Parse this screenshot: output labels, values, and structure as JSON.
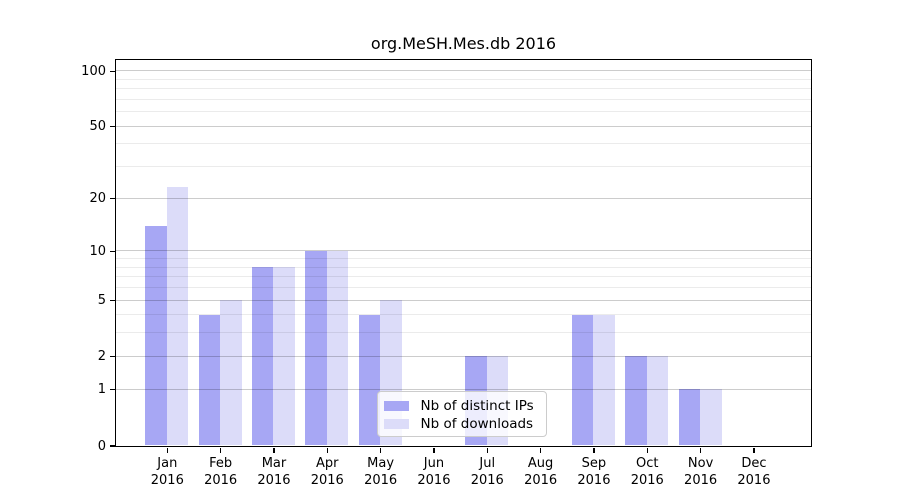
{
  "title": "org.MeSH.Mes.db 2016",
  "chart_data": {
    "type": "bar",
    "title": "org.MeSH.Mes.db 2016",
    "y_scale": "log1p",
    "ylim": [
      0,
      115
    ],
    "grid": "on",
    "legend_position": "lower center",
    "x_categories": [
      {
        "month": "Jan",
        "year": "2016"
      },
      {
        "month": "Feb",
        "year": "2016"
      },
      {
        "month": "Mar",
        "year": "2016"
      },
      {
        "month": "Apr",
        "year": "2016"
      },
      {
        "month": "May",
        "year": "2016"
      },
      {
        "month": "Jun",
        "year": "2016"
      },
      {
        "month": "Jul",
        "year": "2016"
      },
      {
        "month": "Aug",
        "year": "2016"
      },
      {
        "month": "Sep",
        "year": "2016"
      },
      {
        "month": "Oct",
        "year": "2016"
      },
      {
        "month": "Nov",
        "year": "2016"
      },
      {
        "month": "Dec",
        "year": "2016"
      }
    ],
    "series": [
      {
        "name": "Nb of distinct IPs",
        "color": "#a7a7f4",
        "values": [
          14,
          4,
          8,
          10,
          4,
          0,
          2,
          0,
          4,
          2,
          1,
          0
        ]
      },
      {
        "name": "Nb of downloads",
        "color": "#dcdcf9",
        "values": [
          23,
          5,
          8,
          10,
          5,
          0,
          2,
          0,
          4,
          2,
          1,
          0
        ]
      }
    ],
    "y_tick_labels": [
      0,
      1,
      2,
      5,
      10,
      20,
      50,
      100
    ],
    "y_major_gridlines": [
      1,
      2,
      5,
      10,
      20,
      50,
      100
    ],
    "y_minor_gridlines": [
      3,
      4,
      6,
      7,
      8,
      9,
      30,
      40,
      60,
      70,
      80,
      90
    ],
    "axis_color": "#000000",
    "background_color": "#ffffff"
  }
}
